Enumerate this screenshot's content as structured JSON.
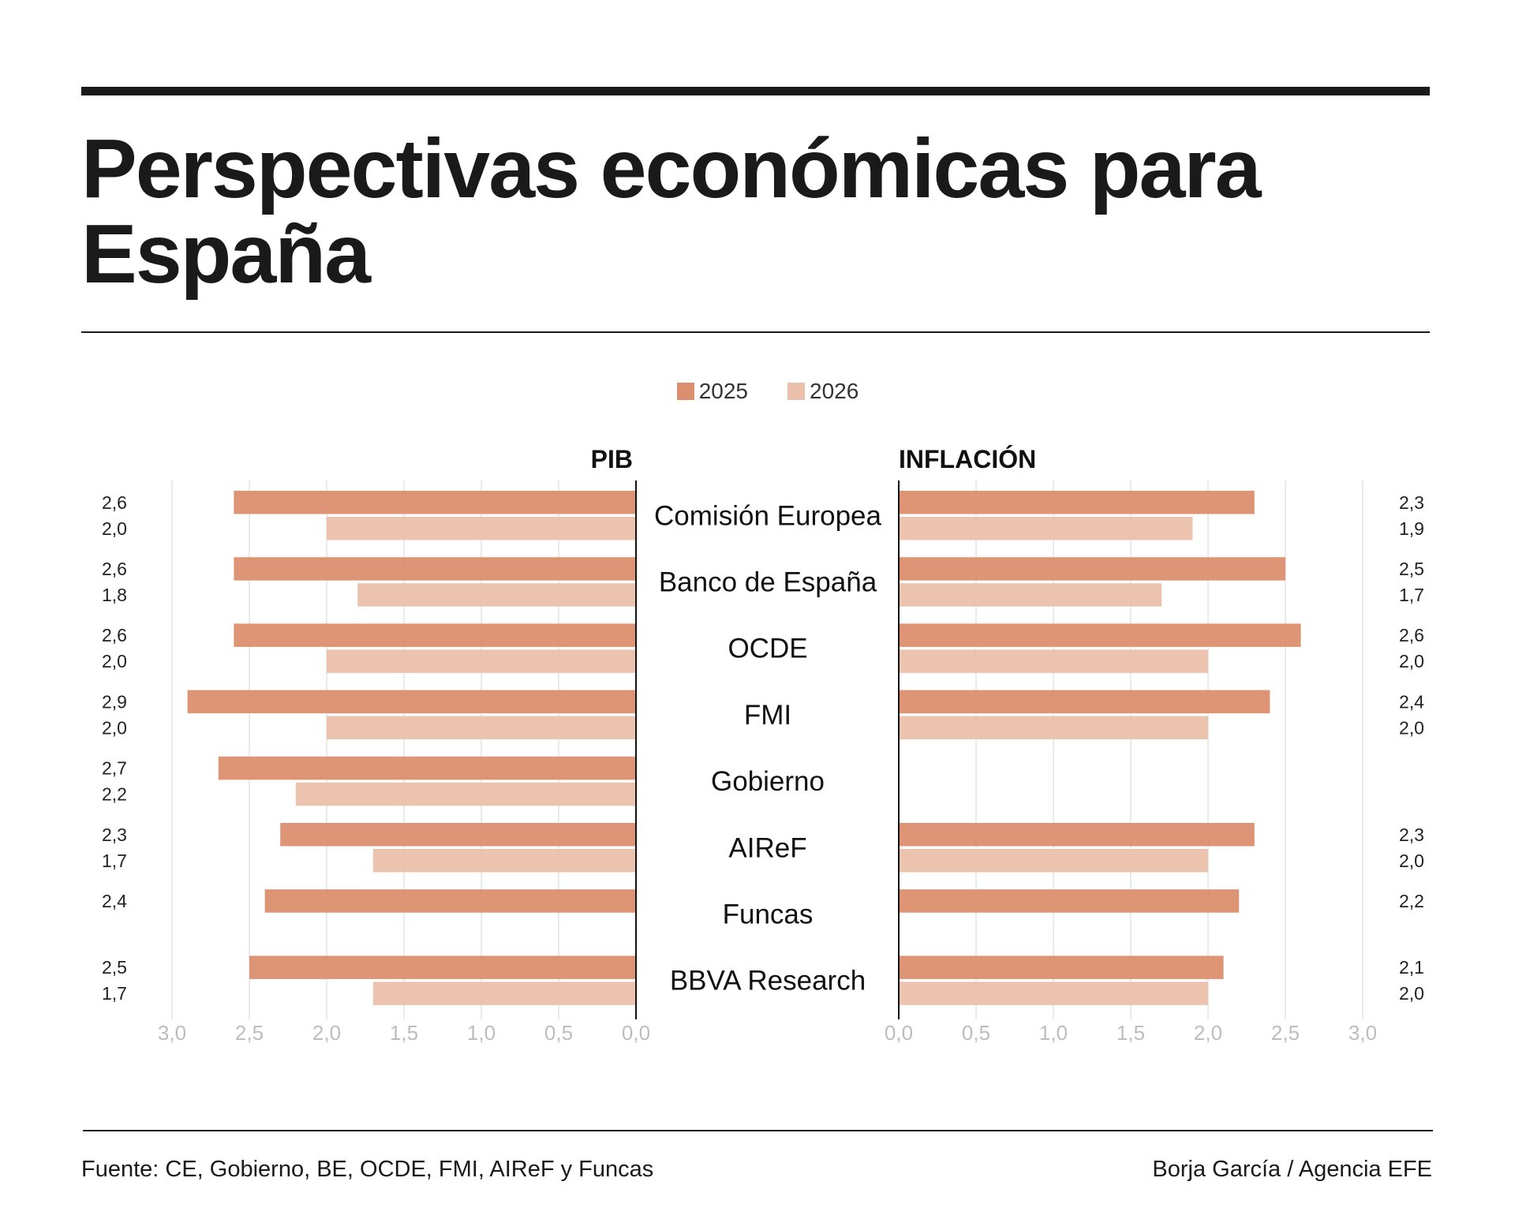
{
  "title": "Perspectivas económicas para España",
  "footer": {
    "source": "Fuente: CE, Gobierno, BE, OCDE, FMI, AIReF y Funcas",
    "credit": "Borja García / Agencia EFE"
  },
  "colors": {
    "2025": "#dc8f6e",
    "2026": "#ebc0aa"
  },
  "chart_data": {
    "type": "bar",
    "orientation": "horizontal",
    "legend": [
      "2025",
      "2026"
    ],
    "legend_placement": "top-center",
    "categories": [
      "Comisión Europea",
      "Banco de España",
      "OCDE",
      "FMI",
      "Gobierno",
      "AIReF",
      "Funcas",
      "BBVA Research"
    ],
    "panels": [
      {
        "title": "PIB",
        "direction": "left",
        "xlim": [
          0,
          3.0
        ],
        "ticks": [
          "0,0",
          "0,5",
          "1,0",
          "1,5",
          "2,0",
          "2,5",
          "3,0"
        ],
        "tick_values": [
          0,
          0.5,
          1.0,
          1.5,
          2.0,
          2.5,
          3.0
        ],
        "grid": true,
        "series": [
          {
            "name": "2025",
            "values": [
              2.6,
              2.6,
              2.6,
              2.9,
              2.7,
              2.3,
              2.4,
              2.5
            ]
          },
          {
            "name": "2026",
            "values": [
              2.0,
              1.8,
              2.0,
              2.0,
              2.2,
              1.7,
              null,
              1.7
            ]
          }
        ]
      },
      {
        "title": "INFLACIÓN",
        "direction": "right",
        "xlim": [
          0,
          3.0
        ],
        "ticks": [
          "0,0",
          "0,5",
          "1,0",
          "1,5",
          "2,0",
          "2,5",
          "3,0"
        ],
        "tick_values": [
          0,
          0.5,
          1.0,
          1.5,
          2.0,
          2.5,
          3.0
        ],
        "grid": true,
        "series": [
          {
            "name": "2025",
            "values": [
              2.3,
              2.5,
              2.6,
              2.4,
              null,
              2.3,
              2.2,
              2.1
            ]
          },
          {
            "name": "2026",
            "values": [
              1.9,
              1.7,
              2.0,
              2.0,
              null,
              2.0,
              null,
              2.0
            ]
          }
        ]
      }
    ]
  }
}
